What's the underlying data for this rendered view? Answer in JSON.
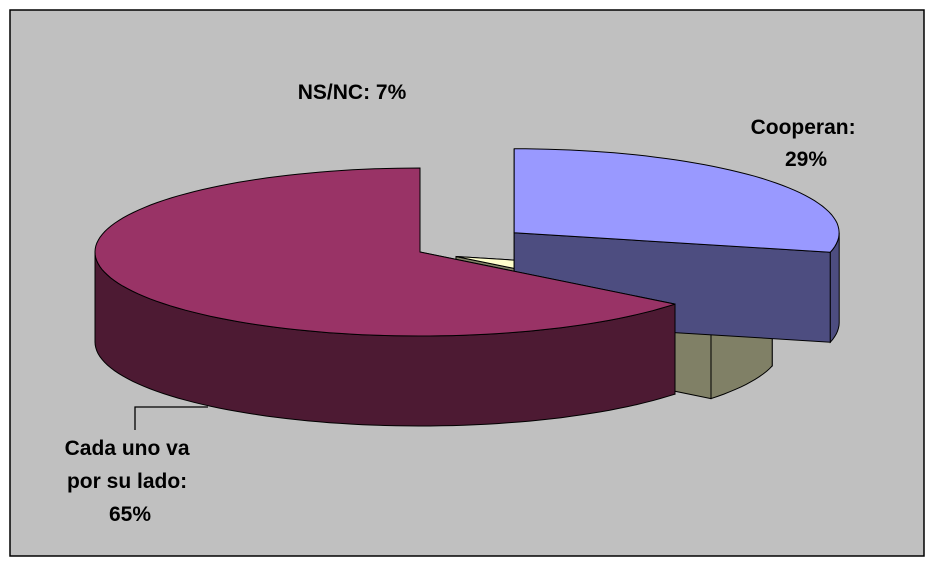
{
  "chart_data": {
    "type": "pie",
    "style": "3d-exploded",
    "slices": [
      {
        "label": "Cooperan",
        "value": 29,
        "value_label": "29%",
        "color": "#9999ff",
        "side_color": "#4d4d80"
      },
      {
        "label": "NS/NC",
        "value": 7,
        "value_label": "7%",
        "color": "#ffffcc",
        "side_color": "#808066"
      },
      {
        "label": "Cada uno va por su lado",
        "value": 65,
        "value_label": "65%",
        "color": "#993366",
        "side_color": "#4d1a33"
      }
    ],
    "background_color": "#c0c0c0",
    "border_color": "#000000"
  },
  "labels": {
    "cooperan": [
      "Cooperan:",
      "29%"
    ],
    "nsnc": [
      "NS/NC: 7%"
    ],
    "cada_uno": [
      "Cada uno va",
      "por su lado:",
      "65%"
    ]
  }
}
